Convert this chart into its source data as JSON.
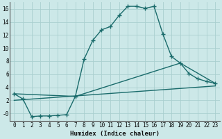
{
  "xlabel": "Humidex (Indice chaleur)",
  "bg_color": "#cce8e8",
  "grid_color": "#aacfcf",
  "line_color": "#1a6b6b",
  "xlim": [
    -0.5,
    23.5
  ],
  "ylim": [
    -1.2,
    17.0
  ],
  "xticks": [
    0,
    1,
    2,
    3,
    4,
    5,
    6,
    7,
    8,
    9,
    10,
    11,
    12,
    13,
    14,
    15,
    16,
    17,
    18,
    19,
    20,
    21,
    22,
    23
  ],
  "yticks": [
    0,
    2,
    4,
    6,
    8,
    10,
    12,
    14,
    16
  ],
  "ytick_labels": [
    "-0",
    "2",
    "4",
    "6",
    "8",
    "10",
    "12",
    "14",
    "16"
  ],
  "series1_x": [
    0,
    1,
    2,
    3,
    4,
    5,
    6,
    7,
    8,
    9,
    10,
    11,
    12,
    13,
    14,
    15,
    16,
    17,
    18,
    19,
    20,
    21,
    22,
    23
  ],
  "series1_y": [
    3.0,
    2.2,
    -0.5,
    -0.4,
    -0.4,
    -0.3,
    -0.2,
    2.6,
    8.3,
    11.2,
    12.8,
    13.3,
    15.0,
    16.4,
    16.4,
    16.1,
    16.4,
    12.2,
    8.7,
    7.7,
    6.1,
    5.3,
    4.9,
    4.6
  ],
  "series2_x": [
    0,
    7,
    19,
    23
  ],
  "series2_y": [
    3.0,
    2.6,
    7.7,
    4.6
  ],
  "series3_x": [
    0,
    23
  ],
  "series3_y": [
    2.0,
    4.2
  ],
  "marker": "+",
  "markersize": 4,
  "linewidth": 1.0
}
